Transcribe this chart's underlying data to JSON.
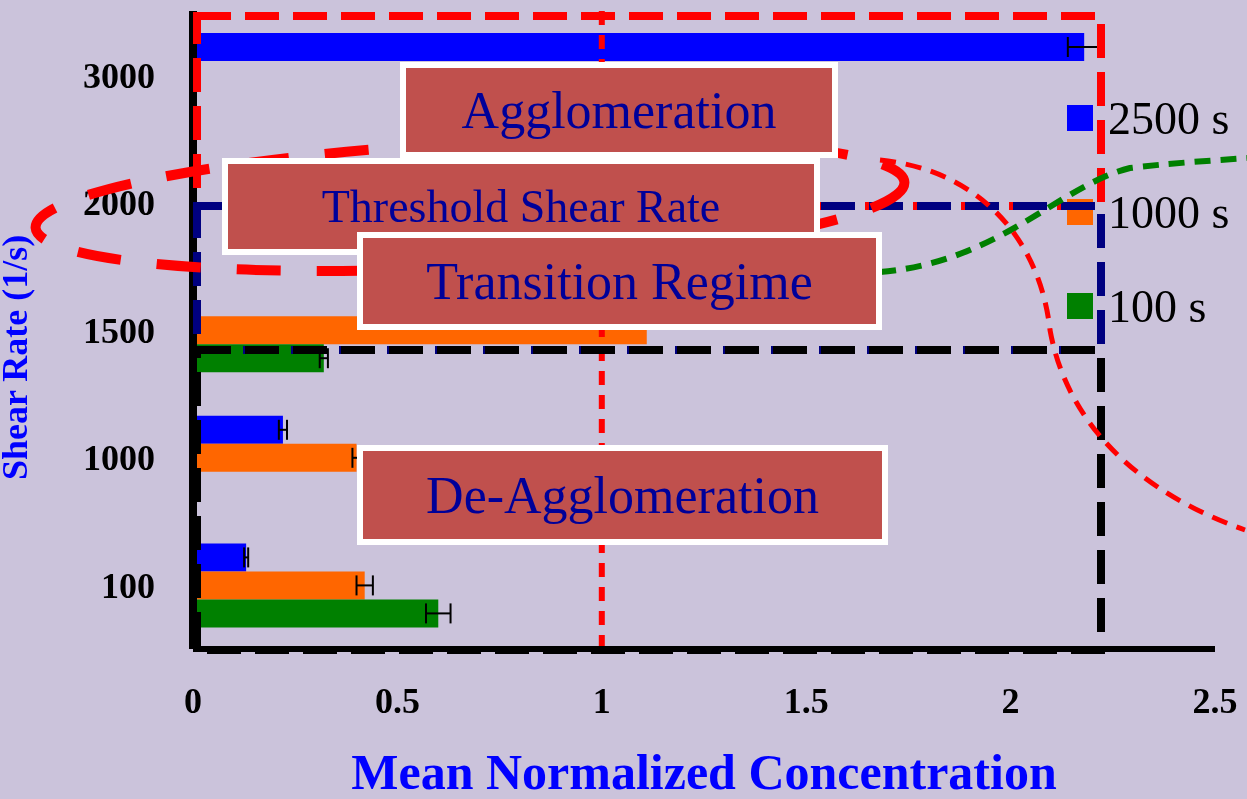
{
  "chart_data": {
    "type": "bar",
    "orientation": "horizontal",
    "xlabel": "Mean Normalized Concentration",
    "ylabel": "Shear Rate (1/s)",
    "categories": [
      "3000",
      "2000",
      "1500",
      "1000",
      "100"
    ],
    "series": [
      {
        "name": "2500 s",
        "color": "#0000ff",
        "values": [
          2.18,
          null,
          null,
          0.22,
          0.13
        ],
        "errors": [
          0.04,
          null,
          null,
          0.01,
          0.005
        ]
      },
      {
        "name": "1000 s",
        "color": "#ff6600",
        "values": [
          null,
          null,
          1.11,
          0.4,
          0.42
        ],
        "errors": [
          null,
          null,
          null,
          0.01,
          0.02
        ]
      },
      {
        "name": "100 s",
        "color": "#008000",
        "values": [
          null,
          null,
          0.32,
          null,
          0.6
        ],
        "errors": [
          null,
          null,
          0.01,
          null,
          0.03
        ]
      }
    ],
    "xlim": [
      0,
      2.5
    ],
    "xticks": [
      0,
      0.5,
      1,
      1.5,
      2,
      2.5
    ],
    "ref_lines": [
      {
        "axis": "x",
        "value": 1,
        "color": "#ff0000",
        "line_style": "dashed"
      }
    ],
    "annotations": [
      "Agglomeration",
      "Threshold Shear Rate",
      "Transition Regime",
      "De-Agglomeration"
    ],
    "legend": "right",
    "grid": false
  }
}
